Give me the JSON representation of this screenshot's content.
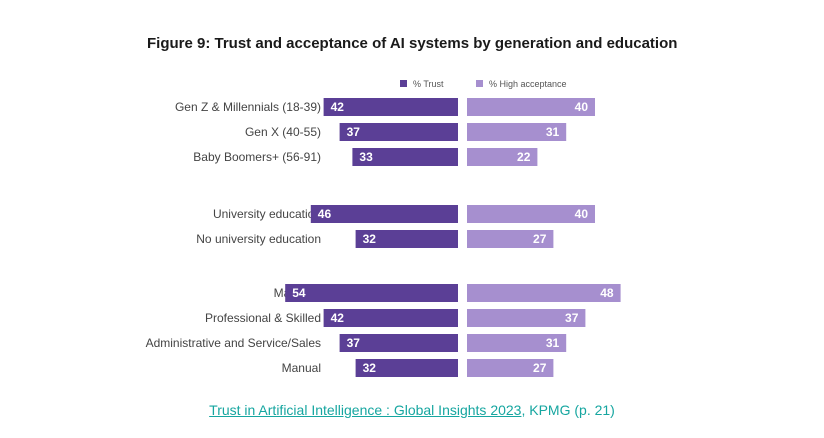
{
  "chart_data": {
    "type": "bar",
    "title": "Figure 9: Trust and acceptance of AI systems by generation and education",
    "legend_position": "top",
    "groups": [
      [
        "Gen Z & Millennials (18-39)",
        "Gen X (40-55)",
        "Baby Boomers+ (56-91)"
      ],
      [
        "University education",
        "No university education"
      ],
      [
        "Manager",
        "Professional & Skilled",
        "Administrative and Service/Sales",
        "Manual"
      ]
    ],
    "categories": [
      "Gen Z & Millennials (18-39)",
      "Gen X (40-55)",
      "Baby Boomers+ (56-91)",
      "University education",
      "No university education",
      "Manager",
      "Professional & Skilled",
      "Administrative and Service/Sales",
      "Manual"
    ],
    "series": [
      {
        "name": "% Trust",
        "color": "#5b3f96",
        "direction": "left",
        "values": [
          42,
          37,
          33,
          46,
          32,
          54,
          42,
          37,
          32
        ]
      },
      {
        "name": "% High acceptance",
        "color": "#a68fcf",
        "direction": "right",
        "values": [
          40,
          31,
          22,
          40,
          27,
          48,
          37,
          31,
          27
        ]
      }
    ]
  },
  "caption": {
    "link_text": "Trust in Artificial Intelligence : Global Insights 2023",
    "rest_text": ", KPMG (p. 21)"
  }
}
